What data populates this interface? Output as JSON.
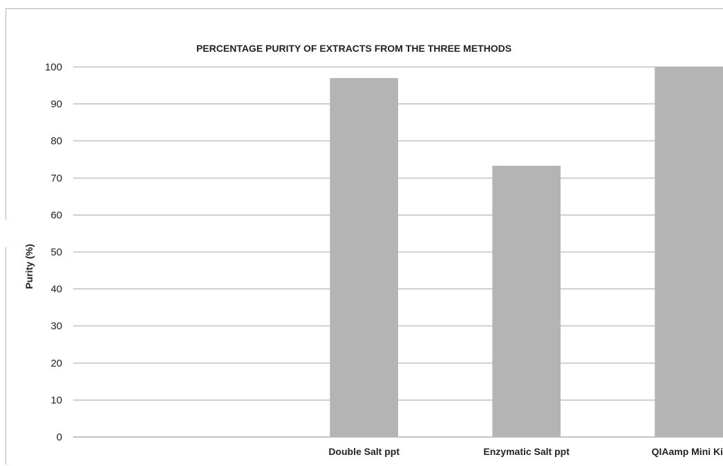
{
  "chart_data": {
    "type": "bar",
    "title": "PERCENTAGE PURITY OF EXTRACTS FROM THE THREE METHODS",
    "xlabel": "",
    "ylabel": "Purity (%)",
    "categories": [
      "",
      "Double Salt ppt",
      "Enzymatic Salt ppt",
      "QIAamp Mini Kit"
    ],
    "values": [
      null,
      97,
      73.3,
      100
    ],
    "ylim": [
      0,
      100
    ],
    "yticks": [
      0,
      10,
      20,
      30,
      40,
      50,
      60,
      70,
      80,
      90,
      100
    ],
    "grid": true,
    "legend": "none",
    "colors": {
      "bar": "#b4b4b4",
      "grid": "#a6a6a6",
      "axis": "#888888",
      "text": "#222222"
    }
  }
}
